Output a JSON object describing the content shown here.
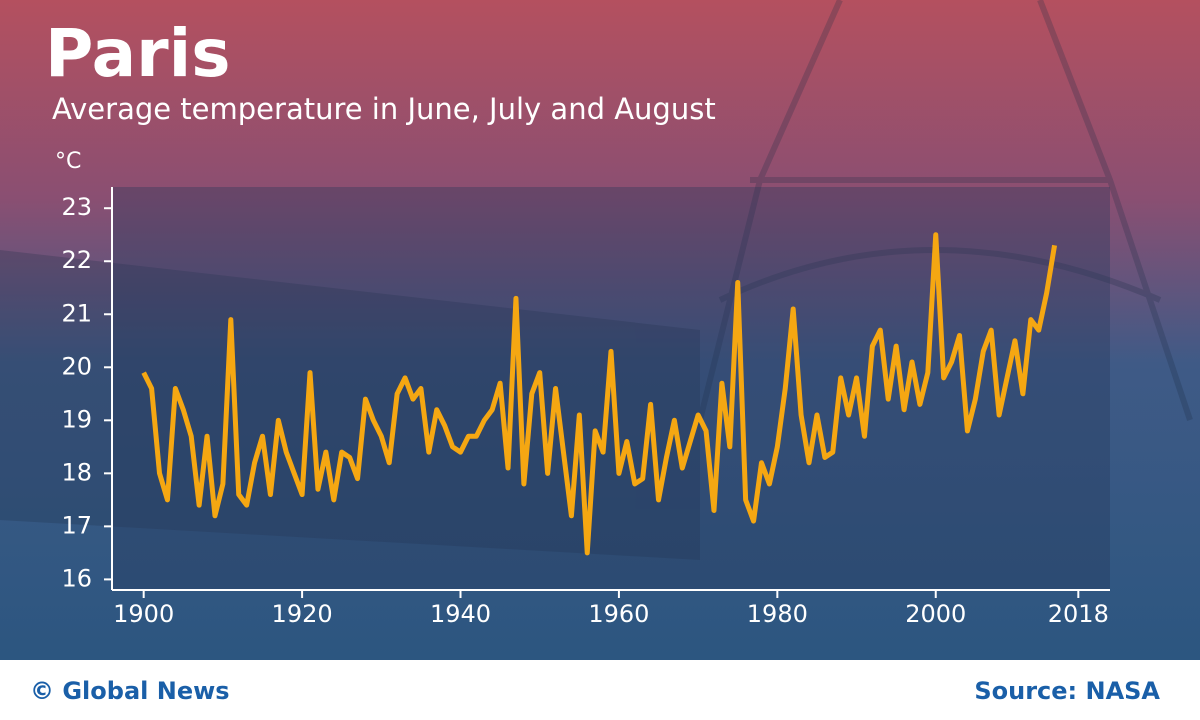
{
  "chart_data": {
    "type": "line",
    "title": "Paris",
    "subtitle": "Average temperature in June, July and August",
    "y_label": "°C",
    "credit": "© Global News",
    "source": "Source: NASA",
    "x": [
      1900,
      1901,
      1902,
      1903,
      1904,
      1905,
      1906,
      1907,
      1908,
      1909,
      1910,
      1911,
      1912,
      1913,
      1914,
      1915,
      1916,
      1917,
      1918,
      1919,
      1920,
      1921,
      1922,
      1923,
      1924,
      1925,
      1926,
      1927,
      1928,
      1929,
      1930,
      1931,
      1932,
      1933,
      1934,
      1935,
      1936,
      1937,
      1938,
      1939,
      1940,
      1941,
      1942,
      1943,
      1944,
      1945,
      1946,
      1947,
      1948,
      1949,
      1950,
      1951,
      1952,
      1953,
      1954,
      1955,
      1956,
      1957,
      1958,
      1959,
      1960,
      1961,
      1962,
      1963,
      1964,
      1965,
      1966,
      1967,
      1968,
      1969,
      1970,
      1971,
      1972,
      1973,
      1974,
      1975,
      1976,
      1977,
      1978,
      1979,
      1980,
      1981,
      1982,
      1983,
      1984,
      1985,
      1986,
      1987,
      1988,
      1989,
      1990,
      1991,
      1992,
      1993,
      1994,
      1995,
      1996,
      1997,
      1998,
      1999,
      2000,
      2001,
      2002,
      2003,
      2004,
      2005,
      2006,
      2007,
      2008,
      2009,
      2010,
      2011,
      2012,
      2013,
      2014,
      2015
    ],
    "series": [
      {
        "color": "#f5a712",
        "values": [
          19.9,
          19.6,
          18.0,
          17.5,
          19.6,
          19.2,
          18.7,
          17.4,
          18.7,
          17.2,
          17.8,
          20.9,
          17.6,
          17.4,
          18.2,
          18.7,
          17.6,
          19.0,
          18.4,
          18.0,
          17.6,
          19.9,
          17.7,
          18.4,
          17.5,
          18.4,
          18.3,
          17.9,
          19.4,
          19.0,
          18.7,
          18.2,
          19.5,
          19.8,
          19.4,
          19.6,
          18.4,
          19.2,
          18.9,
          18.5,
          18.4,
          18.7,
          18.7,
          19.0,
          19.2,
          19.7,
          18.1,
          21.3,
          17.8,
          19.5,
          19.9,
          18.0,
          19.6,
          18.4,
          17.2,
          19.1,
          16.5,
          18.8,
          18.4,
          20.3,
          18.0,
          18.6,
          17.8,
          17.9,
          19.3,
          17.5,
          18.3,
          19.0,
          18.1,
          18.6,
          19.1,
          18.8,
          17.3,
          19.7,
          18.5,
          21.6,
          17.5,
          17.1,
          18.2,
          17.8,
          18.5,
          19.6,
          21.1,
          19.1,
          18.2,
          19.1,
          18.3,
          18.4,
          19.8,
          19.1,
          19.8,
          18.7,
          20.4,
          20.7,
          19.4,
          20.4,
          19.2,
          20.1,
          19.3,
          19.9,
          22.5,
          19.8,
          20.1,
          20.6,
          18.8,
          19.4,
          20.3,
          20.7,
          19.1,
          19.8,
          20.5,
          19.5,
          20.9,
          20.7,
          21.4,
          22.3
        ]
      }
    ],
    "xlim": [
      1896,
      2022
    ],
    "ylim": [
      15.8,
      23.4
    ],
    "xticks": [
      1900,
      1920,
      1940,
      1960,
      1980,
      2000,
      2018
    ],
    "yticks": [
      16,
      17,
      18,
      19,
      20,
      21,
      22,
      23
    ]
  }
}
